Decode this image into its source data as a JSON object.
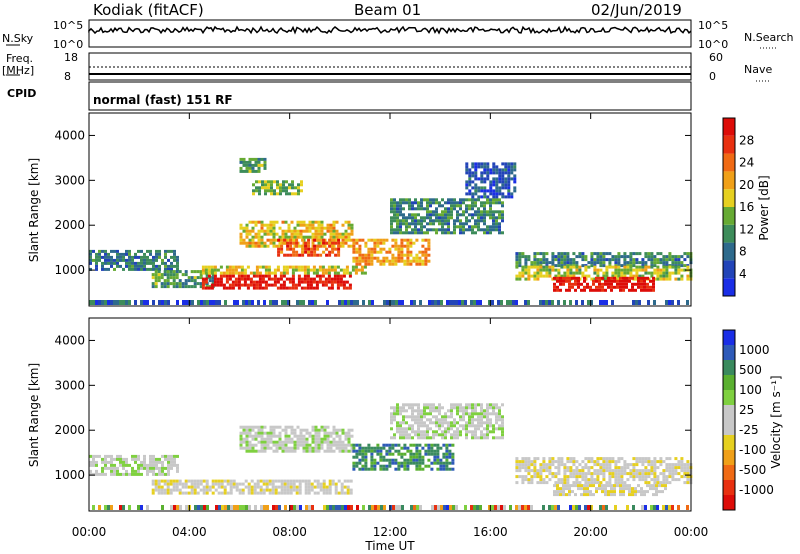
{
  "header": {
    "station": "Kodiak (fitACF)",
    "beam": "Beam 01",
    "date": "02/Jun/2019"
  },
  "top_panels": {
    "nsky_label": "N.Sky",
    "nsky_ticks": [
      "10^5",
      "10^0"
    ],
    "nsearch_label": "N.Search",
    "nsearch_ticks": [
      "10^5",
      "10^0"
    ],
    "freq_label_1": "Freq.",
    "freq_label_2": "[MHz]",
    "freq_ticks": [
      "18",
      "8"
    ],
    "nave_label": "Nave",
    "nave_ticks": [
      "60",
      "0"
    ],
    "cpid_label": "CPID",
    "cpid_text": "normal (fast) 151 RF"
  },
  "chart_data": [
    {
      "type": "heatmap",
      "name": "power",
      "ylabel": "Slant Range [km]",
      "ylim": [
        200,
        4500
      ],
      "yticks": [
        1000,
        2000,
        3000,
        4000
      ],
      "xlim": [
        0,
        24
      ],
      "colorbar": {
        "label": "Power [dB]",
        "ticks": [
          4,
          8,
          12,
          16,
          20,
          24,
          28
        ],
        "colors": [
          "#1a2ee6",
          "#2244b8",
          "#2e6a8c",
          "#3d8c5a",
          "#66aa33",
          "#e6d020",
          "#f0a018",
          "#f06a14",
          "#e83010",
          "#dd0c08"
        ]
      },
      "echo_bands": [
        {
          "t0": 0.0,
          "t1": 3.5,
          "r0": 1000,
          "r1": 1450,
          "level": 7
        },
        {
          "t0": 2.5,
          "t1": 5.0,
          "r0": 650,
          "r1": 1000,
          "level": 10
        },
        {
          "t0": 4.5,
          "t1": 10.5,
          "r0": 600,
          "r1": 900,
          "level": 27
        },
        {
          "t0": 4.5,
          "t1": 11.0,
          "r0": 900,
          "r1": 1100,
          "level": 15
        },
        {
          "t0": 6.0,
          "t1": 10.5,
          "r0": 1500,
          "r1": 2100,
          "level": 16
        },
        {
          "t0": 7.5,
          "t1": 10.0,
          "r0": 1300,
          "r1": 1700,
          "level": 22
        },
        {
          "t0": 10.5,
          "t1": 13.5,
          "r0": 1100,
          "r1": 1700,
          "level": 18
        },
        {
          "t0": 12.0,
          "t1": 16.5,
          "r0": 1800,
          "r1": 2600,
          "level": 8
        },
        {
          "t0": 15.0,
          "t1": 17.0,
          "r0": 2600,
          "r1": 3400,
          "level": 4
        },
        {
          "t0": 6.5,
          "t1": 8.5,
          "r0": 2700,
          "r1": 3000,
          "level": 12
        },
        {
          "t0": 6.0,
          "t1": 7.0,
          "r0": 3200,
          "r1": 3500,
          "level": 10
        },
        {
          "t0": 17.0,
          "t1": 24.0,
          "r0": 1100,
          "r1": 1400,
          "level": 8
        },
        {
          "t0": 17.0,
          "t1": 24.0,
          "r0": 800,
          "r1": 1100,
          "level": 14
        },
        {
          "t0": 18.5,
          "t1": 22.5,
          "r0": 550,
          "r1": 850,
          "level": 27
        }
      ]
    },
    {
      "type": "heatmap",
      "name": "velocity",
      "ylabel": "Slant Range [km]",
      "ylim": [
        200,
        4500
      ],
      "yticks": [
        1000,
        2000,
        3000,
        4000
      ],
      "xlim": [
        0,
        24
      ],
      "xticks": [
        "00:00",
        "04:00",
        "08:00",
        "12:00",
        "16:00",
        "20:00",
        "00:00"
      ],
      "xlabel": "Time UT",
      "colorbar": {
        "label": "Velocity [m s⁻¹]",
        "ticks": [
          "1000",
          "500",
          "100",
          "25",
          "-25",
          "-100",
          "-500",
          "-1000"
        ],
        "colors": [
          "#1a2ee6",
          "#2e5ab8",
          "#3a8a5e",
          "#5ab030",
          "#7fd040",
          "#c8c8c8",
          "#c8c8c8",
          "#e6d020",
          "#f0a018",
          "#f06a14",
          "#e83010",
          "#dd0c08"
        ]
      },
      "echo_bands": [
        {
          "t0": 0.0,
          "t1": 3.5,
          "r0": 1000,
          "r1": 1450,
          "level": 5
        },
        {
          "t0": 2.5,
          "t1": 10.5,
          "r0": 600,
          "r1": 900,
          "level": 6
        },
        {
          "t0": 6.0,
          "t1": 10.5,
          "r0": 1500,
          "r1": 2100,
          "level": 5
        },
        {
          "t0": 10.5,
          "t1": 14.5,
          "r0": 1100,
          "r1": 1700,
          "level": 2
        },
        {
          "t0": 12.0,
          "t1": 16.5,
          "r0": 1800,
          "r1": 2600,
          "level": 5
        },
        {
          "t0": 17.0,
          "t1": 24.0,
          "r0": 800,
          "r1": 1400,
          "level": 6
        },
        {
          "t0": 18.5,
          "t1": 23.0,
          "r0": 550,
          "r1": 800,
          "level": 6
        }
      ]
    }
  ]
}
